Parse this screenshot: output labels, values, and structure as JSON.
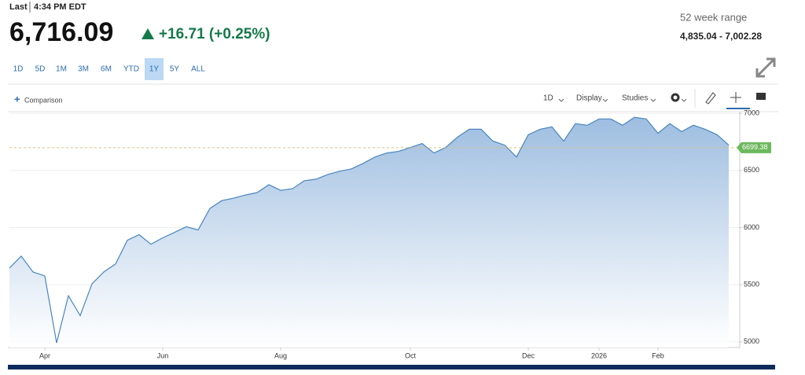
{
  "header": {
    "last_label": "Last",
    "time": "4:34 PM EDT",
    "price": "6,716.09",
    "change": "+16.71 (+0.25%)",
    "range_title": "52 week range",
    "range_value": "4,835.04 - 7,002.28"
  },
  "ranges": [
    "1D",
    "5D",
    "1M",
    "3M",
    "6M",
    "YTD",
    "1Y",
    "5Y",
    "ALL"
  ],
  "toolbar": {
    "comparison": "Comparison",
    "interval": "1D",
    "display": "Display",
    "studies": "Studies"
  },
  "chart_data": {
    "type": "area",
    "color": "#4a86c0",
    "fill": "#a9c5e3",
    "categories": [
      null,
      null,
      null,
      "Apr",
      null,
      null,
      null,
      null,
      null,
      null,
      null,
      null,
      null,
      "Jun",
      null,
      null,
      null,
      null,
      null,
      null,
      null,
      null,
      null,
      "Aug",
      null,
      null,
      null,
      null,
      null,
      null,
      null,
      null,
      null,
      null,
      "Oct",
      null,
      null,
      null,
      null,
      null,
      null,
      null,
      null,
      null,
      "Dec",
      null,
      null,
      null,
      null,
      null,
      "2026",
      null,
      null,
      null,
      null,
      "Feb",
      null,
      null,
      null,
      null,
      null,
      null
    ],
    "values": [
      5646,
      5750,
      5611,
      5576,
      4990,
      5403,
      5229,
      5507,
      5611,
      5681,
      5889,
      5938,
      5854,
      5910,
      5958,
      6007,
      5979,
      6167,
      6236,
      6257,
      6285,
      6306,
      6375,
      6326,
      6340,
      6410,
      6424,
      6465,
      6493,
      6514,
      6562,
      6618,
      6653,
      6667,
      6701,
      6736,
      6653,
      6701,
      6792,
      6861,
      6861,
      6757,
      6722,
      6618,
      6813,
      6861,
      6882,
      6757,
      6910,
      6896,
      6951,
      6951,
      6896,
      6965,
      6951,
      6826,
      6910,
      6840,
      6896,
      6861,
      6813,
      6722
    ],
    "ylim": [
      4950,
      7015
    ],
    "yticks": [
      5000,
      5500,
      6000,
      6500,
      7000
    ],
    "grid": true,
    "reference": {
      "value": 6699.38,
      "label": "6699.38",
      "color": "#6cb85c"
    }
  }
}
